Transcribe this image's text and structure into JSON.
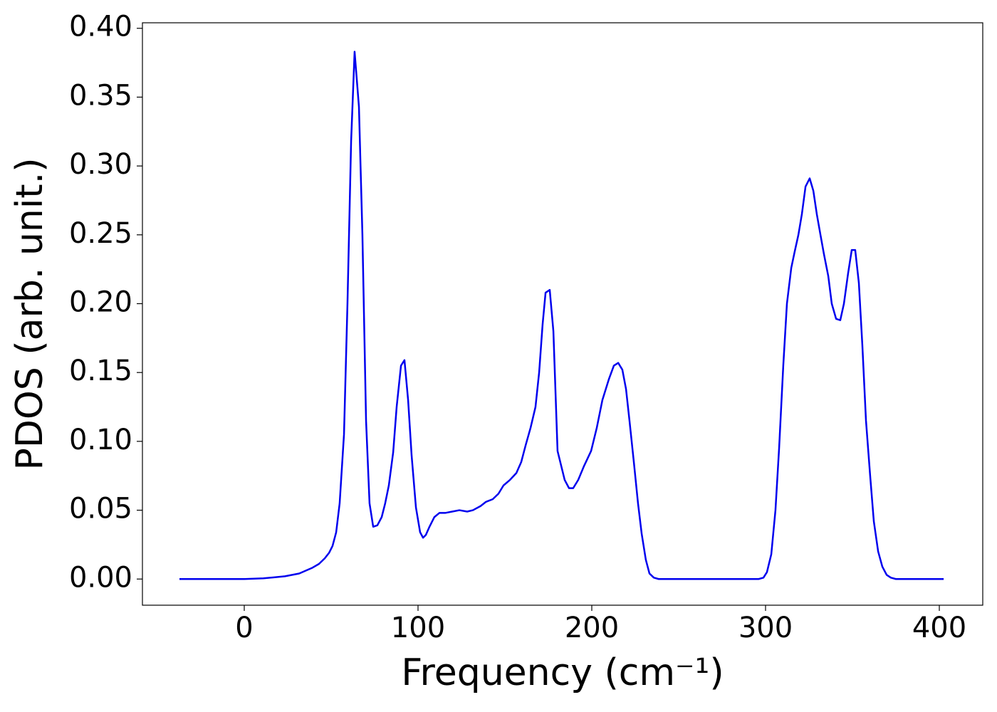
{
  "chart_data": {
    "type": "line",
    "xlabel": "Frequency (cm⁻¹)",
    "ylabel": "PDOS (arb. unit.)",
    "x": [
      -37.3,
      0,
      11,
      23.4,
      31.6,
      38.9,
      43,
      46.3,
      48.8,
      50.8,
      52.9,
      54.9,
      57.4,
      59.4,
      61.5,
      63.5,
      66,
      68,
      70.1,
      72.1,
      74.2,
      76.6,
      79.1,
      81.1,
      83.2,
      85.7,
      87.7,
      90.2,
      92.2,
      94.3,
      96.3,
      98.8,
      101.2,
      102.9,
      104.5,
      106.6,
      109.4,
      112.3,
      115.6,
      119.7,
      123.8,
      128.3,
      131.6,
      136,
      139,
      143,
      146.3,
      149.2,
      152.9,
      156.6,
      159.4,
      161.9,
      164.8,
      167.6,
      169.7,
      171.7,
      173.4,
      175.8,
      177.9,
      180.3,
      184.4,
      186.9,
      189.3,
      192.2,
      195.5,
      199.6,
      202.9,
      206.1,
      209.8,
      212.7,
      215.2,
      217.6,
      219.7,
      221.7,
      224.2,
      226.6,
      228.7,
      231.1,
      233.2,
      235.7,
      238.5,
      296,
      298.8,
      300.8,
      303.3,
      305.7,
      307.8,
      310.2,
      312.3,
      314.8,
      316.8,
      318.9,
      320.9,
      323,
      325.4,
      327.5,
      329.5,
      331.6,
      333.6,
      336.1,
      338.1,
      340.6,
      343,
      345.1,
      347.5,
      349.6,
      351.6,
      353.7,
      355.7,
      357.8,
      360.2,
      362.3,
      364.8,
      367.2,
      369.7,
      372.1,
      375,
      402.5
    ],
    "series": [
      {
        "color": "#0000ee",
        "values": [
          0,
          0,
          0.0005,
          0.002,
          0.004,
          0.008,
          0.011,
          0.015,
          0.019,
          0.024,
          0.034,
          0.055,
          0.105,
          0.2,
          0.318,
          0.383,
          0.343,
          0.25,
          0.115,
          0.055,
          0.038,
          0.039,
          0.045,
          0.055,
          0.068,
          0.092,
          0.125,
          0.155,
          0.159,
          0.13,
          0.09,
          0.052,
          0.034,
          0.03,
          0.032,
          0.038,
          0.045,
          0.048,
          0.048,
          0.049,
          0.05,
          0.049,
          0.05,
          0.053,
          0.056,
          0.058,
          0.062,
          0.068,
          0.072,
          0.077,
          0.085,
          0.097,
          0.11,
          0.125,
          0.15,
          0.185,
          0.208,
          0.21,
          0.18,
          0.093,
          0.072,
          0.066,
          0.066,
          0.072,
          0.082,
          0.093,
          0.11,
          0.13,
          0.145,
          0.155,
          0.157,
          0.152,
          0.138,
          0.115,
          0.085,
          0.055,
          0.033,
          0.014,
          0.004,
          0.001,
          0,
          0,
          0.001,
          0.005,
          0.018,
          0.05,
          0.095,
          0.155,
          0.2,
          0.226,
          0.238,
          0.25,
          0.265,
          0.285,
          0.291,
          0.282,
          0.265,
          0.25,
          0.236,
          0.22,
          0.2,
          0.189,
          0.188,
          0.2,
          0.222,
          0.239,
          0.239,
          0.215,
          0.17,
          0.115,
          0.075,
          0.042,
          0.02,
          0.009,
          0.003,
          0.001,
          0,
          0
        ]
      }
    ],
    "xlim": [
      -58.6,
      425.0
    ],
    "ylim": [
      -0.019,
      0.404
    ],
    "xticks": [
      0,
      100,
      200,
      300,
      400
    ],
    "yticks": [
      {
        "value": 0,
        "label": "0.00"
      },
      {
        "value": 0.05,
        "label": "0.05"
      },
      {
        "value": 0.1,
        "label": "0.10"
      },
      {
        "value": 0.15,
        "label": "0.15"
      },
      {
        "value": 0.2,
        "label": "0.20"
      },
      {
        "value": 0.25,
        "label": "0.25"
      },
      {
        "value": 0.3,
        "label": "0.30"
      },
      {
        "value": 0.35,
        "label": "0.35"
      },
      {
        "value": 0.4,
        "label": "0.40"
      }
    ],
    "grid": false
  }
}
